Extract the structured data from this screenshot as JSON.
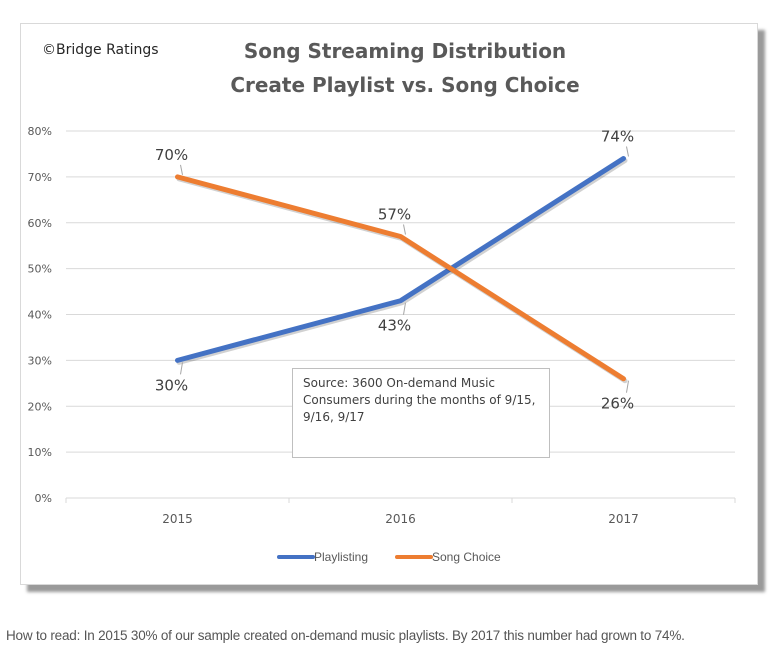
{
  "chart_data": {
    "type": "line",
    "title": "Song Streaming Distribution",
    "subtitle": "Create Playlist vs. Song Choice",
    "copyright": "©Bridge Ratings",
    "categories": [
      "2015",
      "2016",
      "2017"
    ],
    "series": [
      {
        "name": "Playlisting",
        "color": "#4472C4",
        "values": [
          30,
          43,
          74
        ],
        "labels": [
          "30%",
          "43%",
          "74%"
        ]
      },
      {
        "name": "Song Choice",
        "color": "#ED7D31",
        "values": [
          70,
          57,
          26
        ],
        "labels": [
          "70%",
          "57%",
          "26%"
        ]
      }
    ],
    "yticks": [
      "0%",
      "10%",
      "20%",
      "30%",
      "40%",
      "50%",
      "60%",
      "70%",
      "80%"
    ],
    "ylim": [
      0,
      80
    ],
    "xlabel": "",
    "ylabel": "",
    "grid": true,
    "legend_position": "bottom",
    "annotation": "Source: 3600 On-demand Music Consumers during the months of 9/15, 9/16, 9/17"
  },
  "caption": "How to read: In 2015 30% of our sample created on-demand music playlists. By 2017 this number had grown to 74%."
}
